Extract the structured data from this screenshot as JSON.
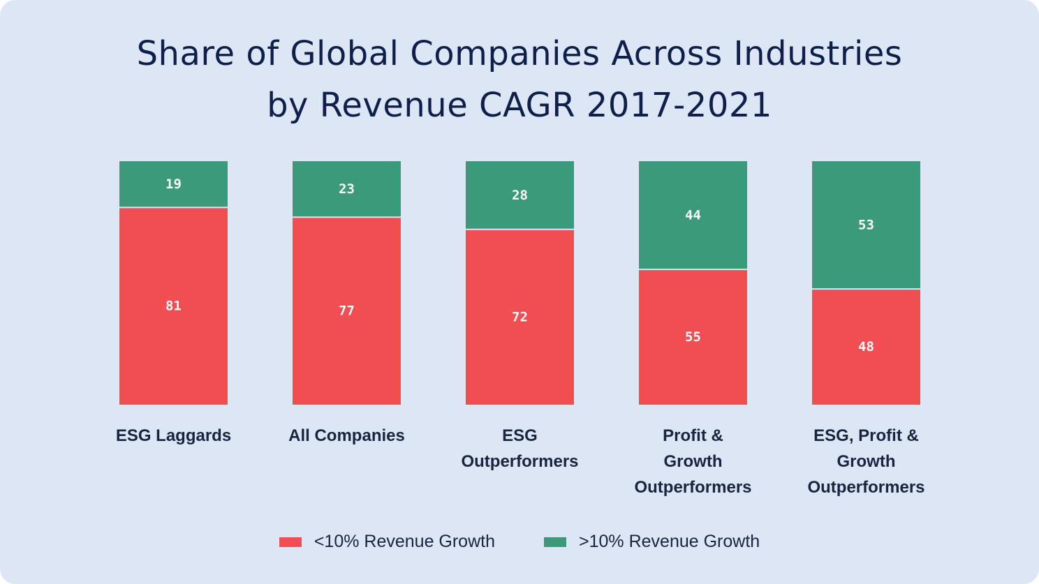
{
  "title_lines": [
    "Share of Global Companies Across Industries",
    "by Revenue CAGR 2017-2021"
  ],
  "colors": {
    "background": "#dde6f5",
    "low_growth": "#f04e52",
    "high_growth": "#3a9a7a",
    "text": "#1a2340"
  },
  "legend": {
    "low_label": "<10% Revenue Growth",
    "high_label": ">10% Revenue Growth"
  },
  "chart_data": {
    "type": "bar",
    "stacked": true,
    "orientation": "vertical",
    "title": "Share of Global Companies Across Industries by Revenue CAGR 2017-2021",
    "unit": "percent",
    "ylim": [
      0,
      100
    ],
    "grid": false,
    "legend_position": "bottom",
    "categories": [
      [
        "ESG Laggards"
      ],
      [
        "All Companies"
      ],
      [
        "ESG",
        "Outperformers"
      ],
      [
        "Profit &",
        "Growth",
        "Outperformers"
      ],
      [
        "ESG, Profit &",
        "Growth",
        "Outperformers"
      ]
    ],
    "series": [
      {
        "name": "<10% Revenue Growth",
        "key": "low_growth",
        "values": [
          81,
          77,
          72,
          55,
          48
        ]
      },
      {
        "name": ">10% Revenue Growth",
        "key": "high_growth",
        "values": [
          19,
          23,
          28,
          44,
          53
        ]
      }
    ]
  }
}
